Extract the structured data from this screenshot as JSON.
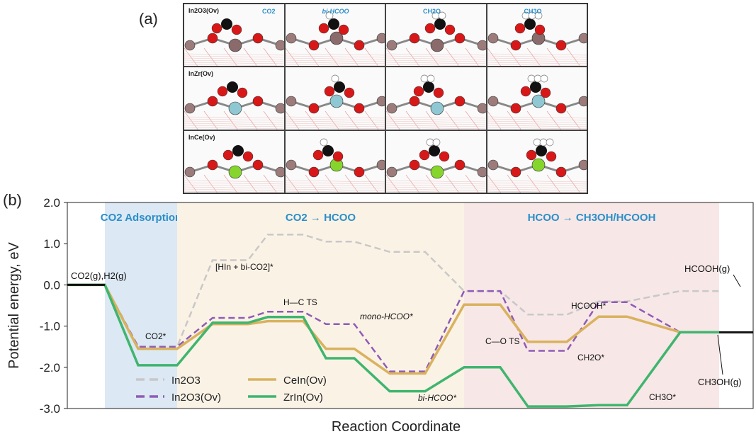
{
  "panel_a": {
    "label": "(a)",
    "rows": [
      {
        "title": "In2O3(Ov)",
        "tags": [
          "CO2",
          "bi-HCOO",
          "CH2O",
          "CH3O"
        ],
        "metal": "In",
        "metal_color": "#8a6a6a"
      },
      {
        "title": "InZr(Ov)",
        "tags": [
          "",
          "",
          "",
          ""
        ],
        "metal": "Zr",
        "metal_color": "#8fc7d2"
      },
      {
        "title": "InCe(Ov)",
        "tags": [
          "",
          "",
          "",
          ""
        ],
        "metal": "Ce",
        "metal_color": "#86d52c"
      }
    ],
    "atom_labels": {
      "c": "C",
      "h": "H",
      "in": "In"
    }
  },
  "panel_b": {
    "label": "(b)",
    "regions": [
      {
        "name": "CO2 Adsorption",
        "color": "#dce8f4"
      },
      {
        "name": "CO2 → HCOO",
        "color": "#fbf2e6"
      },
      {
        "name": "HCOO → CH3OH/HCOOH",
        "color": "#f8e7e7"
      }
    ],
    "annotations": {
      "start": "CO2(g),H2(g)",
      "co2star": "CO2*",
      "hin": "[HIn + bi-CO2]*",
      "hcts": "H—C TS",
      "mono": "mono-HCOO*",
      "bihcoo": "bi-HCOO*",
      "cots": "C—O TS",
      "hcooh_star": "HCOOH*",
      "ch2o": "CH2O*",
      "ch3o": "CH3O*",
      "hcooh_g": "HCOOH(g)",
      "ch3oh_g": "CH3OH(g)"
    }
  },
  "chart_data": {
    "type": "line",
    "xlabel": "Reaction Coordinate",
    "ylabel": "Potential energy, eV",
    "ylim": [
      -3.0,
      2.0
    ],
    "yticks": [
      "2.0",
      "1.0",
      "0.0",
      "-1.0",
      "-2.0",
      "-3.0"
    ],
    "grid": false,
    "legend_position": "bottom-left",
    "series": [
      {
        "name": "In2O3",
        "color": "#c8c8c8",
        "dash": true,
        "values": [
          0,
          0,
          -1.5,
          -1.5,
          0.6,
          0.6,
          1.22,
          1.22,
          1.05,
          1.05,
          0.8,
          0.8,
          -0.15,
          -0.15,
          -0.72,
          -0.72,
          -0.4,
          -0.4,
          -0.15,
          -0.15
        ]
      },
      {
        "name": "In2O3(Ov)",
        "color": "#8e5cb5",
        "dash": true,
        "values": [
          0,
          0,
          -1.5,
          -1.5,
          -0.8,
          -0.8,
          -0.65,
          -0.65,
          -0.95,
          -0.95,
          -2.1,
          -2.1,
          -0.15,
          -0.15,
          -1.6,
          -1.6,
          -0.42,
          -0.42,
          -1.15,
          -1.15
        ]
      },
      {
        "name": "CeIn(Ov)",
        "color": "#d9b25e",
        "dash": false,
        "values": [
          0,
          0,
          -1.55,
          -1.55,
          -0.95,
          -0.95,
          -0.88,
          -0.88,
          -1.55,
          -1.55,
          -2.15,
          -2.15,
          -0.48,
          -0.48,
          -1.38,
          -1.38,
          -0.77,
          -0.77,
          -1.15,
          -1.15
        ]
      },
      {
        "name": "ZrIn(Ov)",
        "color": "#3fb56e",
        "dash": false,
        "values": [
          0,
          0,
          -1.95,
          -1.95,
          -0.92,
          -0.92,
          -0.78,
          -0.78,
          -1.78,
          -1.78,
          -2.58,
          -2.58,
          -2.0,
          -2.0,
          -2.95,
          -2.95,
          -2.92,
          -2.92,
          -1.15,
          -1.15
        ]
      }
    ]
  }
}
